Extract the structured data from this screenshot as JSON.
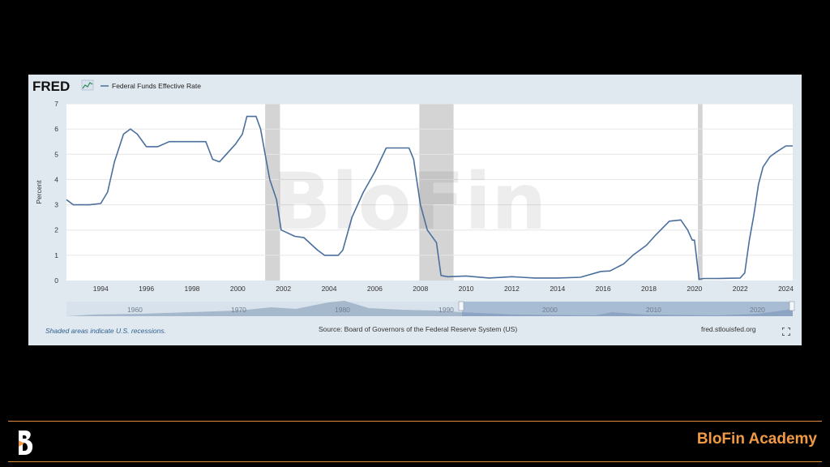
{
  "header": {
    "logo_text": "FRED",
    "series_label": "Federal Funds Effective Rate"
  },
  "watermark": "BloFin",
  "footer": {
    "note": "Shaded areas indicate U.S. recessions.",
    "source": "Source: Board of Governors of the Federal Reserve System (US)",
    "site": "fred.stlouisfed.org"
  },
  "brand": {
    "name": "BloFin Academy"
  },
  "colors": {
    "line": "#4a6f9d",
    "panel": "#e1e9f0",
    "recession": "#d4d4d4",
    "brand_orange": "#f09a45"
  },
  "chart_data": {
    "type": "line",
    "ylabel": "Percent",
    "ylim": [
      0,
      7
    ],
    "xlim": [
      1992.5,
      2024.3
    ],
    "yticks": [
      0,
      1,
      2,
      3,
      4,
      5,
      6,
      7
    ],
    "xticks": [
      1994,
      1996,
      1998,
      2000,
      2002,
      2004,
      2006,
      2008,
      2010,
      2012,
      2014,
      2016,
      2018,
      2020,
      2022,
      2024
    ],
    "grid": true,
    "recessions": [
      [
        2001.2,
        2001.85
      ],
      [
        2007.95,
        2009.45
      ],
      [
        2020.15,
        2020.35
      ]
    ],
    "series": [
      {
        "name": "Federal Funds Effective Rate",
        "x": [
          1992.5,
          1992.8,
          1993.0,
          1993.5,
          1994.0,
          1994.3,
          1994.6,
          1995.0,
          1995.3,
          1995.6,
          1996.0,
          1996.5,
          1997.0,
          1997.5,
          1998.0,
          1998.6,
          1998.9,
          1999.2,
          1999.5,
          1999.9,
          2000.2,
          2000.4,
          2000.8,
          2001.0,
          2001.2,
          2001.4,
          2001.7,
          2001.9,
          2002.5,
          2002.9,
          2003.5,
          2003.8,
          2004.4,
          2004.6,
          2005.0,
          2005.5,
          2006.0,
          2006.5,
          2007.0,
          2007.5,
          2007.7,
          2008.0,
          2008.3,
          2008.7,
          2008.9,
          2009.2,
          2010.0,
          2011.0,
          2012.0,
          2013.0,
          2014.0,
          2015.0,
          2015.9,
          2016.3,
          2016.9,
          2017.3,
          2017.9,
          2018.3,
          2018.9,
          2019.4,
          2019.7,
          2019.9,
          2020.0,
          2020.2,
          2020.4,
          2021.0,
          2022.0,
          2022.2,
          2022.4,
          2022.6,
          2022.8,
          2023.0,
          2023.3,
          2023.6,
          2024.0,
          2024.3
        ],
        "values": [
          3.2,
          3.0,
          3.0,
          3.0,
          3.05,
          3.5,
          4.7,
          5.8,
          6.0,
          5.8,
          5.3,
          5.3,
          5.5,
          5.5,
          5.5,
          5.5,
          4.8,
          4.7,
          5.0,
          5.4,
          5.8,
          6.5,
          6.5,
          6.0,
          5.0,
          4.0,
          3.2,
          2.0,
          1.75,
          1.7,
          1.2,
          1.0,
          1.0,
          1.2,
          2.5,
          3.5,
          4.3,
          5.25,
          5.25,
          5.25,
          4.8,
          3.0,
          2.0,
          1.5,
          0.2,
          0.15,
          0.18,
          0.1,
          0.15,
          0.1,
          0.1,
          0.13,
          0.36,
          0.38,
          0.66,
          1.0,
          1.4,
          1.8,
          2.35,
          2.4,
          2.0,
          1.6,
          1.6,
          0.05,
          0.08,
          0.08,
          0.1,
          0.3,
          1.6,
          2.6,
          3.8,
          4.5,
          4.9,
          5.1,
          5.33,
          5.33
        ]
      }
    ],
    "navigator": {
      "labels": [
        "1960",
        "1970",
        "1980",
        "1990",
        "2000",
        "2010",
        "2020"
      ]
    }
  }
}
